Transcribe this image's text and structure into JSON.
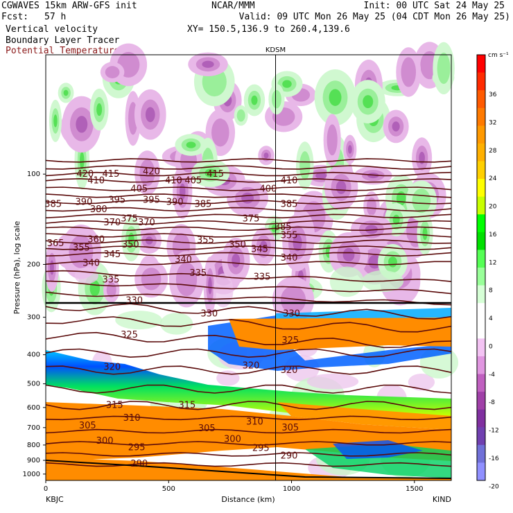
{
  "header": {
    "model": "CGWAVES 15km ARW-GFS init",
    "org": "NCAR/MMM",
    "init": "Init: 00 UTC Sat 24 May 25",
    "fcst_label": "Fcst:",
    "fcst_value": "57 h",
    "valid": "Valid: 09 UTC Mon 26 May 25 (04 CDT Mon 26 May 25)",
    "field1": "Vertical velocity",
    "field2": "Boundary Layer Tracer",
    "field3": "Potential Temperature",
    "xy": "XY= 150.5,136.9 to 260.4,139.6"
  },
  "colors": {
    "theta": "#5a0a0a",
    "field3_text": "#8b1a1a"
  },
  "chart_data": {
    "type": "heatmap",
    "xlabel": "Distance (km)",
    "ylabel": "Pressure (hPa), log scale",
    "xlim": [
      0,
      1650
    ],
    "ylim": [
      1050,
      40
    ],
    "y_scale": "log",
    "x_ticks": [
      "0",
      "500",
      "1000",
      "1500"
    ],
    "y_ticks": [
      "100",
      "200",
      "300",
      "400",
      "500",
      "600",
      "700",
      "800",
      "900",
      "1000"
    ],
    "left_station": "KBJC",
    "right_station": "KIND",
    "mid_station": "KDSM",
    "mid_station_x": 935,
    "colorbar_units": "cm s⁻¹",
    "colorbar_ticks": [
      "36",
      "32",
      "28",
      "24",
      "20",
      "16",
      "12",
      "8",
      "4",
      "0",
      "-4",
      "-8",
      "-12",
      "-16",
      "-20"
    ],
    "colorbar_colors": [
      "#ff0000",
      "#ff2a00",
      "#ff5a00",
      "#ff7a00",
      "#ff9900",
      "#ffb000",
      "#ffd000",
      "#ffff00",
      "#c8ff00",
      "#00ff00",
      "#00e000",
      "#55ff55",
      "#99ff99",
      "#d6ffd6",
      "#ffffff",
      "#ffffff",
      "#f3c3f3",
      "#e096e0",
      "#c060c0",
      "#a040a8",
      "#8030a0",
      "#7040b0",
      "#7070d8",
      "#9090ff"
    ],
    "theta_labels": [
      {
        "v": "420",
        "x": 160,
        "p": 100
      },
      {
        "v": "410",
        "x": 205,
        "p": 105
      },
      {
        "v": "415",
        "x": 265,
        "p": 100
      },
      {
        "v": "420",
        "x": 430,
        "p": 98
      },
      {
        "v": "410",
        "x": 520,
        "p": 105
      },
      {
        "v": "405",
        "x": 600,
        "p": 105
      },
      {
        "v": "415",
        "x": 690,
        "p": 100
      },
      {
        "v": "410",
        "x": 990,
        "p": 105
      },
      {
        "v": "385",
        "x": 30,
        "p": 126
      },
      {
        "v": "390",
        "x": 155,
        "p": 124
      },
      {
        "v": "380",
        "x": 215,
        "p": 131
      },
      {
        "v": "395",
        "x": 290,
        "p": 122
      },
      {
        "v": "405",
        "x": 380,
        "p": 112
      },
      {
        "v": "395",
        "x": 430,
        "p": 122
      },
      {
        "v": "390",
        "x": 525,
        "p": 124
      },
      {
        "v": "385",
        "x": 640,
        "p": 126
      },
      {
        "v": "400",
        "x": 905,
        "p": 112
      },
      {
        "v": "385",
        "x": 990,
        "p": 126
      },
      {
        "v": "370",
        "x": 270,
        "p": 145
      },
      {
        "v": "375",
        "x": 340,
        "p": 141
      },
      {
        "v": "370",
        "x": 410,
        "p": 145
      },
      {
        "v": "375",
        "x": 835,
        "p": 141
      },
      {
        "v": "385",
        "x": 965,
        "p": 150
      },
      {
        "v": "365",
        "x": 40,
        "p": 170
      },
      {
        "v": "355",
        "x": 145,
        "p": 176
      },
      {
        "v": "360",
        "x": 205,
        "p": 165
      },
      {
        "v": "350",
        "x": 345,
        "p": 172
      },
      {
        "v": "355",
        "x": 650,
        "p": 166
      },
      {
        "v": "350",
        "x": 780,
        "p": 172
      },
      {
        "v": "345",
        "x": 870,
        "p": 178
      },
      {
        "v": "355",
        "x": 990,
        "p": 160
      },
      {
        "v": "345",
        "x": 270,
        "p": 185
      },
      {
        "v": "340",
        "x": 185,
        "p": 198
      },
      {
        "v": "340",
        "x": 560,
        "p": 193
      },
      {
        "v": "340",
        "x": 990,
        "p": 190
      },
      {
        "v": "335",
        "x": 265,
        "p": 225
      },
      {
        "v": "335",
        "x": 620,
        "p": 214
      },
      {
        "v": "335",
        "x": 880,
        "p": 220
      },
      {
        "v": "330",
        "x": 360,
        "p": 264
      },
      {
        "v": "330",
        "x": 665,
        "p": 292
      },
      {
        "v": "330",
        "x": 1000,
        "p": 292
      },
      {
        "v": "325",
        "x": 340,
        "p": 343
      },
      {
        "v": "325",
        "x": 995,
        "p": 358
      },
      {
        "v": "320",
        "x": 270,
        "p": 440
      },
      {
        "v": "320",
        "x": 835,
        "p": 435
      },
      {
        "v": "320",
        "x": 990,
        "p": 450
      },
      {
        "v": "315",
        "x": 280,
        "p": 590
      },
      {
        "v": "315",
        "x": 575,
        "p": 590
      },
      {
        "v": "310",
        "x": 350,
        "p": 650
      },
      {
        "v": "310",
        "x": 850,
        "p": 670
      },
      {
        "v": "305",
        "x": 170,
        "p": 690
      },
      {
        "v": "305",
        "x": 655,
        "p": 705
      },
      {
        "v": "305",
        "x": 995,
        "p": 700
      },
      {
        "v": "300",
        "x": 240,
        "p": 775
      },
      {
        "v": "300",
        "x": 760,
        "p": 765
      },
      {
        "v": "295",
        "x": 370,
        "p": 815
      },
      {
        "v": "295",
        "x": 875,
        "p": 820
      },
      {
        "v": "290",
        "x": 380,
        "p": 925
      },
      {
        "v": "290",
        "x": 990,
        "p": 870
      }
    ]
  }
}
